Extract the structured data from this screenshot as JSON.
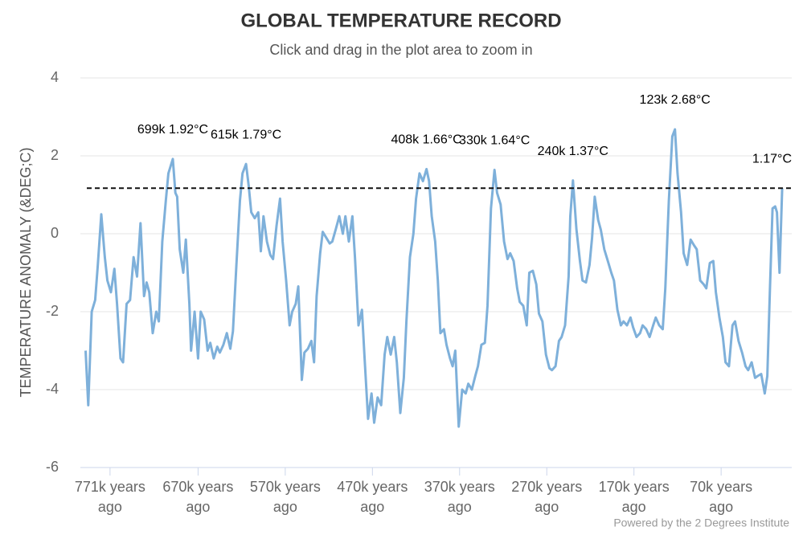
{
  "chart_data": {
    "type": "line",
    "title": "GLOBAL TEMPERATURE RECORD",
    "subtitle": "Click and drag in the plot area to zoom in",
    "y_axis_label": "TEMPERATURE ANOMALY (&DEG;C)",
    "credit": "Powered by the 2 Degrees Institute",
    "xlim": [
      -805,
      11
    ],
    "ylim": [
      -6,
      4
    ],
    "yticks": [
      -6,
      -4,
      -2,
      0,
      2,
      4
    ],
    "xticks": [
      {
        "value": -771,
        "label": "771k years ago"
      },
      {
        "value": -670,
        "label": "670k years ago"
      },
      {
        "value": -570,
        "label": "570k years ago"
      },
      {
        "value": -470,
        "label": "470k years ago"
      },
      {
        "value": -370,
        "label": "370k years ago"
      },
      {
        "value": -270,
        "label": "270k years ago"
      },
      {
        "value": -170,
        "label": "170k years ago"
      },
      {
        "value": -70,
        "label": "70k years ago"
      }
    ],
    "grid": true,
    "reference_line": {
      "y": 1.17,
      "color": "#111111",
      "dashed": true
    },
    "annotations": [
      {
        "text": "699k 1.92°C",
        "x": -699,
        "y": 1.92
      },
      {
        "text": "615k 1.79°C",
        "x": -615,
        "y": 1.79
      },
      {
        "text": "408k 1.66°C",
        "x": -408,
        "y": 1.66
      },
      {
        "text": "330k 1.64°C",
        "x": -330,
        "y": 1.64
      },
      {
        "text": "240k 1.37°C",
        "x": -240,
        "y": 1.37
      },
      {
        "text": "123k 2.68°C",
        "x": -123,
        "y": 2.68
      },
      {
        "text": "1.17°C",
        "x": 0,
        "y": 1.17
      }
    ],
    "series": [
      {
        "name": "Temperature anomaly",
        "color": "#7eb0da",
        "x": [
          -799,
          -796,
          -792,
          -788,
          -785,
          -781,
          -777,
          -774,
          -770,
          -766,
          -763,
          -759,
          -756,
          -752,
          -748,
          -744,
          -740,
          -736,
          -732,
          -729,
          -726,
          -722,
          -718,
          -715,
          -711,
          -707,
          -704,
          -699,
          -696,
          -694,
          -691,
          -687,
          -684,
          -680,
          -678,
          -674,
          -670,
          -667,
          -663,
          -659,
          -656,
          -652,
          -648,
          -645,
          -641,
          -637,
          -633,
          -630,
          -626,
          -622,
          -619,
          -615,
          -612,
          -609,
          -605,
          -601,
          -598,
          -595,
          -591,
          -587,
          -584,
          -580,
          -576,
          -573,
          -569,
          -565,
          -562,
          -558,
          -555,
          -551,
          -548,
          -544,
          -540,
          -537,
          -534,
          -530,
          -527,
          -523,
          -519,
          -516,
          -512,
          -508,
          -504,
          -501,
          -497,
          -493,
          -490,
          -486,
          -482,
          -479,
          -475,
          -471,
          -468,
          -464,
          -460,
          -456,
          -453,
          -449,
          -445,
          -442,
          -438,
          -434,
          -431,
          -427,
          -423,
          -420,
          -416,
          -412,
          -408,
          -405,
          -402,
          -398,
          -395,
          -392,
          -388,
          -385,
          -381,
          -378,
          -375,
          -371,
          -367,
          -363,
          -360,
          -356,
          -352,
          -349,
          -345,
          -341,
          -338,
          -334,
          -330,
          -327,
          -323,
          -319,
          -315,
          -312,
          -308,
          -304,
          -301,
          -297,
          -293,
          -290,
          -286,
          -282,
          -279,
          -275,
          -271,
          -267,
          -264,
          -260,
          -256,
          -253,
          -249,
          -245,
          -243,
          -240,
          -236,
          -232,
          -229,
          -225,
          -221,
          -218,
          -215,
          -211,
          -208,
          -204,
          -200,
          -196,
          -193,
          -189,
          -185,
          -182,
          -178,
          -174,
          -171,
          -167,
          -163,
          -160,
          -156,
          -152,
          -148,
          -145,
          -141,
          -137,
          -134,
          -130,
          -126,
          -123,
          -120,
          -116,
          -113,
          -109,
          -105,
          -101,
          -98,
          -94,
          -90,
          -87,
          -83,
          -79,
          -76,
          -72,
          -68,
          -65,
          -61,
          -57,
          -54,
          -50,
          -46,
          -42,
          -39,
          -35,
          -31,
          -28,
          -24,
          -20,
          -17,
          -14,
          -11,
          -8,
          -6,
          -3,
          0
        ],
        "values": [
          -3.0,
          -4.4,
          -2.0,
          -1.7,
          -0.8,
          0.5,
          -0.6,
          -1.2,
          -1.5,
          -0.9,
          -1.8,
          -3.2,
          -3.3,
          -1.8,
          -1.7,
          -0.6,
          -1.1,
          0.27,
          -1.6,
          -1.25,
          -1.5,
          -2.55,
          -2.0,
          -2.25,
          -0.2,
          0.85,
          1.55,
          1.92,
          1.05,
          0.95,
          -0.4,
          -1.0,
          -0.15,
          -1.8,
          -3.0,
          -2.0,
          -3.2,
          -2.0,
          -2.2,
          -3.0,
          -2.8,
          -3.2,
          -2.9,
          -3.05,
          -2.85,
          -2.55,
          -2.95,
          -2.5,
          -0.8,
          0.85,
          1.55,
          1.79,
          1.25,
          0.55,
          0.4,
          0.55,
          -0.45,
          0.45,
          -0.2,
          -0.55,
          -0.65,
          0.2,
          0.9,
          -0.2,
          -1.2,
          -2.35,
          -2.0,
          -1.8,
          -1.35,
          -3.75,
          -3.05,
          -2.95,
          -2.75,
          -3.3,
          -1.6,
          -0.5,
          0.05,
          -0.1,
          -0.25,
          -0.2,
          0.12,
          0.45,
          0.0,
          0.45,
          -0.2,
          0.45,
          -0.6,
          -2.35,
          -1.95,
          -3.2,
          -4.75,
          -4.1,
          -4.85,
          -4.2,
          -4.4,
          -3.1,
          -2.65,
          -3.1,
          -2.65,
          -3.3,
          -4.6,
          -3.7,
          -2.25,
          -0.6,
          0.0,
          0.9,
          1.55,
          1.35,
          1.66,
          1.35,
          0.45,
          -0.2,
          -1.2,
          -2.55,
          -2.45,
          -2.85,
          -3.2,
          -3.4,
          -3.0,
          -4.95,
          -4.0,
          -4.1,
          -3.85,
          -4.0,
          -3.65,
          -3.4,
          -2.85,
          -2.8,
          -1.85,
          0.65,
          1.64,
          1.05,
          0.75,
          -0.2,
          -0.65,
          -0.5,
          -0.7,
          -1.4,
          -1.75,
          -1.85,
          -2.35,
          -1.0,
          -0.95,
          -1.3,
          -2.05,
          -2.25,
          -3.1,
          -3.45,
          -3.5,
          -3.4,
          -2.75,
          -2.65,
          -2.35,
          -1.1,
          0.45,
          1.37,
          0.12,
          -0.7,
          -1.2,
          -1.25,
          -0.8,
          -0.1,
          0.95,
          0.35,
          0.1,
          -0.4,
          -0.7,
          -1.0,
          -1.2,
          -1.95,
          -2.35,
          -2.25,
          -2.35,
          -2.15,
          -2.4,
          -2.65,
          -2.55,
          -2.35,
          -2.45,
          -2.65,
          -2.35,
          -2.15,
          -2.35,
          -2.45,
          -1.4,
          0.85,
          2.5,
          2.68,
          1.55,
          0.55,
          -0.5,
          -0.8,
          -0.15,
          -0.3,
          -0.4,
          -1.2,
          -1.3,
          -1.4,
          -0.75,
          -0.7,
          -1.5,
          -2.15,
          -2.65,
          -3.3,
          -3.4,
          -2.35,
          -2.25,
          -2.75,
          -3.05,
          -3.4,
          -3.5,
          -3.3,
          -3.7,
          -3.65,
          -3.6,
          -4.1,
          -3.65,
          -1.4,
          0.65,
          0.7,
          0.55,
          -1.0,
          1.17
        ]
      }
    ]
  }
}
